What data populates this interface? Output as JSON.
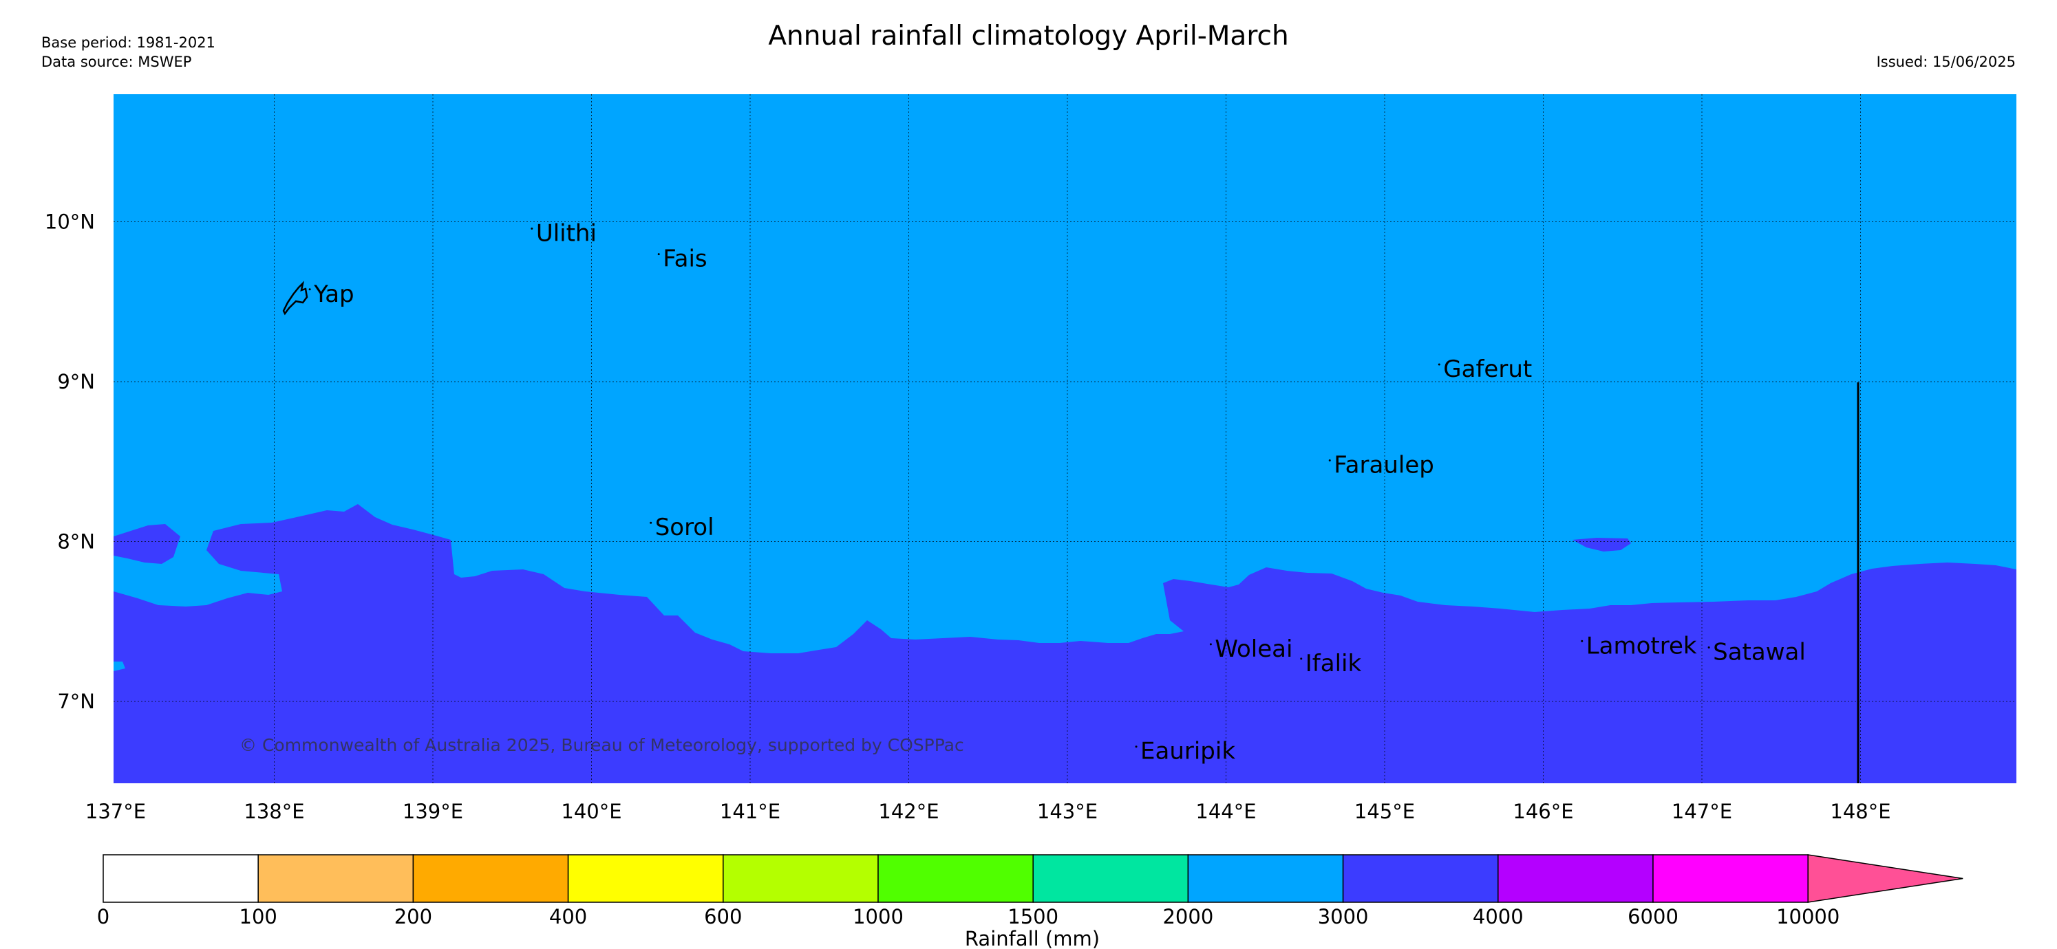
{
  "header": {
    "base_period": "Base period: 1981-2021",
    "data_source": "Data source: MSWEP",
    "title": "Annual rainfall climatology April-March",
    "issued": "Issued: 15/06/2025"
  },
  "map": {
    "lon_range": [
      137,
      149
    ],
    "lat_range": [
      6.5,
      10.8
    ],
    "grid": true,
    "lon_ticks": [
      "137°E",
      "138°E",
      "139°E",
      "140°E",
      "141°E",
      "142°E",
      "143°E",
      "144°E",
      "145°E",
      "146°E",
      "147°E",
      "148°E"
    ],
    "lat_ticks": [
      "7°N",
      "8°N",
      "9°N",
      "10°N"
    ],
    "credit": "© Commonwealth of Australia 2025, Bureau of Meteorology, supported by COSPPac",
    "background_color": "#00a5ff",
    "wet_color": "#3c3cff",
    "places": [
      {
        "name": "Yap",
        "lon": 138.25,
        "lat": 9.5
      },
      {
        "name": "Ulithi",
        "lon": 139.65,
        "lat": 9.88
      },
      {
        "name": "Fais",
        "lon": 140.45,
        "lat": 9.72
      },
      {
        "name": "Gaferut",
        "lon": 145.37,
        "lat": 9.03
      },
      {
        "name": "Faraulep",
        "lon": 144.68,
        "lat": 8.43
      },
      {
        "name": "Sorol",
        "lon": 140.4,
        "lat": 8.04
      },
      {
        "name": "Woleai",
        "lon": 143.93,
        "lat": 7.28
      },
      {
        "name": "Ifalik",
        "lon": 144.5,
        "lat": 7.19
      },
      {
        "name": "Lamotrek",
        "lon": 146.27,
        "lat": 7.3
      },
      {
        "name": "Satawal",
        "lon": 147.07,
        "lat": 7.26
      },
      {
        "name": "Eauripik",
        "lon": 143.46,
        "lat": 6.64
      }
    ]
  },
  "colorbar": {
    "label": "Rainfall (mm)",
    "ticks": [
      "0",
      "100",
      "200",
      "400",
      "600",
      "1000",
      "1500",
      "2000",
      "3000",
      "4000",
      "6000",
      "10000"
    ],
    "colors": [
      "#ffffff",
      "#ffbe5a",
      "#ffaa00",
      "#ffff00",
      "#b4ff00",
      "#50ff00",
      "#00e6a0",
      "#00a5ff",
      "#3c3cff",
      "#b400ff",
      "#ff00ff",
      "#ff5096"
    ]
  }
}
